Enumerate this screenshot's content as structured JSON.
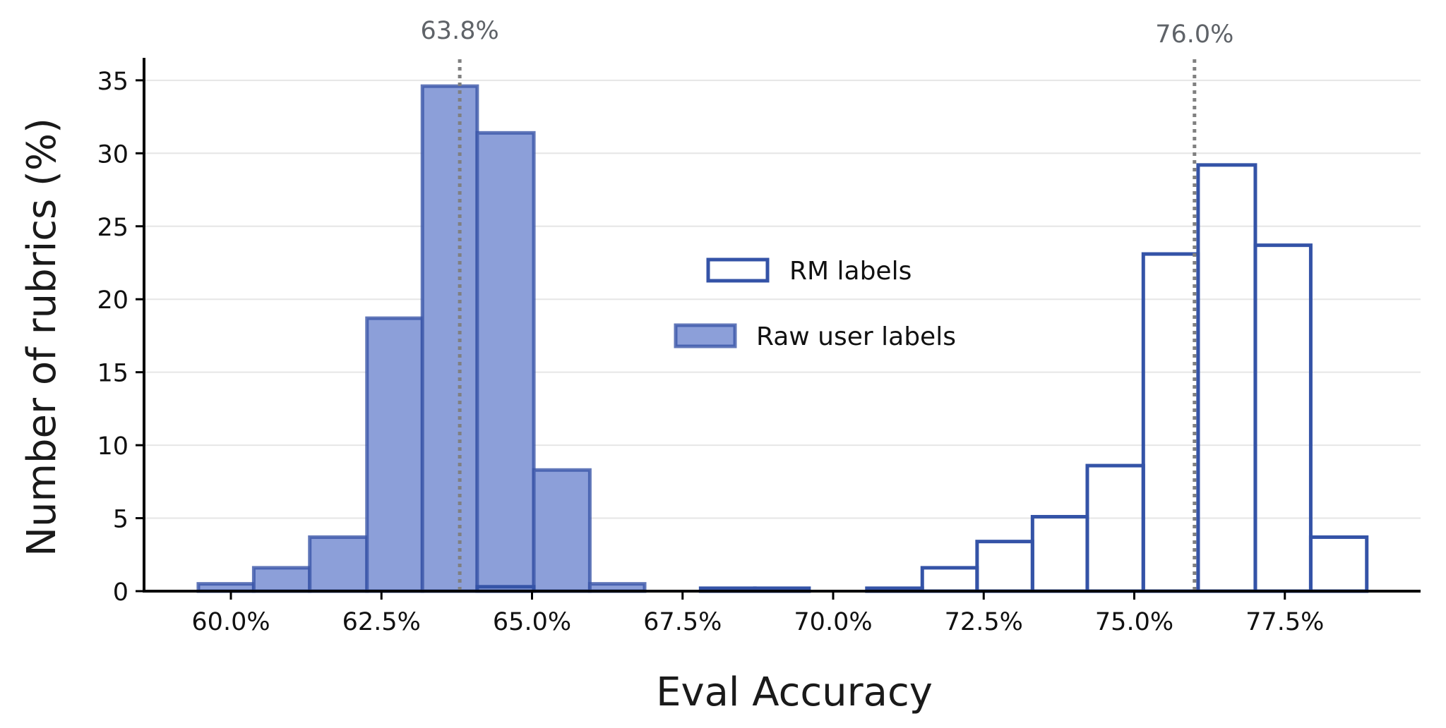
{
  "chart_data": {
    "type": "histogram",
    "title": "",
    "xlabel": "Eval Accuracy",
    "ylabel": "Number of rubrics (%)",
    "xlim": [
      57.3,
      80.1
    ],
    "ylim": [
      0,
      36.5
    ],
    "x_tick_labels": [
      "60.0%",
      "62.5%",
      "65.0%",
      "67.5%",
      "70.0%",
      "72.5%",
      "75.0%",
      "77.5%"
    ],
    "x_ticks": [
      60,
      62.5,
      65,
      67.5,
      70,
      72.5,
      75,
      77.5
    ],
    "y_ticks": [
      0,
      5,
      10,
      15,
      20,
      25,
      30,
      35
    ],
    "y_tick_labels": [
      "0",
      "5",
      "10",
      "15",
      "20",
      "25",
      "30",
      "35"
    ],
    "grid": "horizontal",
    "legend_position": "center",
    "series": [
      {
        "name": "RM labels",
        "style": "outline",
        "edge_color": "#3453a7",
        "fill_color": "#ffffff",
        "bins": [
          {
            "x0": 64.09,
            "x1": 65.03,
            "value": 0.3
          },
          {
            "x0": 67.8,
            "x1": 68.7,
            "value": 0.2
          },
          {
            "x0": 68.7,
            "x1": 69.6,
            "value": 0.2
          },
          {
            "x0": 70.56,
            "x1": 71.48,
            "value": 0.2
          },
          {
            "x0": 71.48,
            "x1": 72.39,
            "value": 1.6
          },
          {
            "x0": 72.39,
            "x1": 73.31,
            "value": 3.4
          },
          {
            "x0": 73.31,
            "x1": 74.22,
            "value": 5.1
          },
          {
            "x0": 74.22,
            "x1": 75.15,
            "value": 8.6
          },
          {
            "x0": 75.15,
            "x1": 76.06,
            "value": 23.1
          },
          {
            "x0": 76.06,
            "x1": 77.01,
            "value": 29.2
          },
          {
            "x0": 77.01,
            "x1": 77.93,
            "value": 23.7
          },
          {
            "x0": 77.93,
            "x1": 78.86,
            "value": 3.7
          }
        ],
        "mean_label": "76.0%",
        "mean": 76.0
      },
      {
        "name": "Raw user labels",
        "style": "filled",
        "edge_color": "#3a55a8",
        "fill_color": "#8c9fd9",
        "bins": [
          {
            "x0": 59.46,
            "x1": 60.38,
            "value": 0.5
          },
          {
            "x0": 60.38,
            "x1": 61.31,
            "value": 1.6
          },
          {
            "x0": 61.31,
            "x1": 62.26,
            "value": 3.7
          },
          {
            "x0": 62.26,
            "x1": 63.18,
            "value": 18.7
          },
          {
            "x0": 63.18,
            "x1": 64.09,
            "value": 34.6
          },
          {
            "x0": 64.09,
            "x1": 65.03,
            "value": 31.4
          },
          {
            "x0": 65.03,
            "x1": 65.96,
            "value": 8.3
          },
          {
            "x0": 65.96,
            "x1": 66.87,
            "value": 0.5
          }
        ],
        "mean_label": "63.8%",
        "mean": 63.8
      }
    ]
  }
}
